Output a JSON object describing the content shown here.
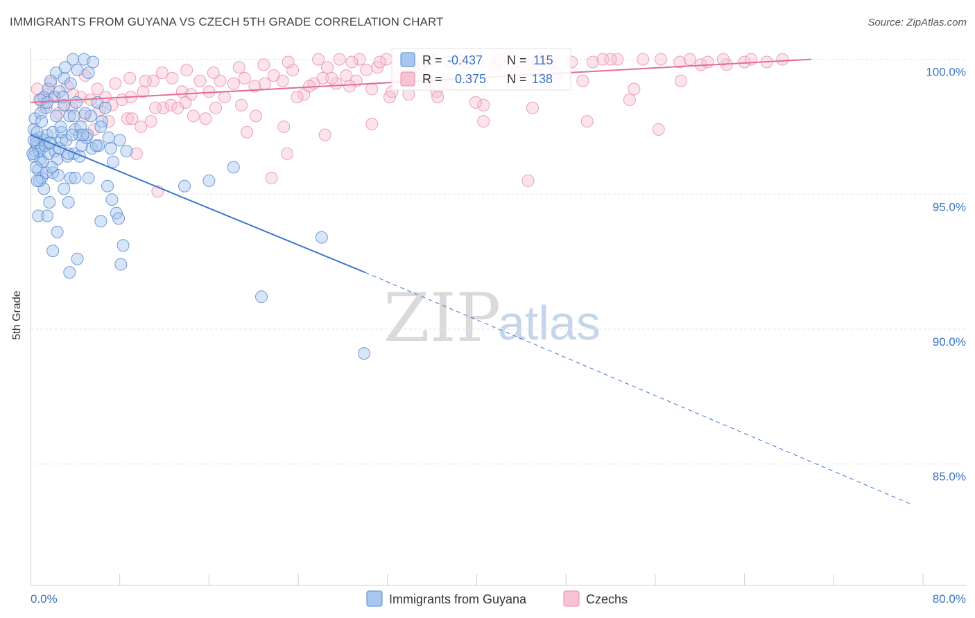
{
  "header": {
    "title": "IMMIGRANTS FROM GUYANA VS CZECH 5TH GRADE CORRELATION CHART",
    "source": "Source: ZipAtlas.com"
  },
  "watermark": {
    "zip": "ZIP",
    "atlas": "atlas"
  },
  "chart_data": {
    "type": "scatter",
    "title": "IMMIGRANTS FROM GUYANA VS CZECH 5TH GRADE CORRELATION CHART",
    "xlabel": "",
    "ylabel": "5th Grade",
    "xlim": [
      0,
      80
    ],
    "ylim": [
      80.5,
      100.4
    ],
    "x_tick_labels": [
      "0.0%",
      "80.0%"
    ],
    "y_ticks": [
      100,
      95,
      90,
      85
    ],
    "y_tick_labels": [
      "100.0%",
      "95.0%",
      "90.0%",
      "85.0%"
    ],
    "grid": true,
    "legend_position": "bottom-center",
    "colors": {
      "blue_fill": "#a9c6ee",
      "blue_stroke": "#4f86cf",
      "blue_line": "#3a74d0",
      "pink_fill": "#f7c3d2",
      "pink_stroke": "#e889a7",
      "pink_line": "#e56b93",
      "grid": "#e6e6e6",
      "axis_text": "#3a74c4"
    },
    "stats": [
      {
        "r_label": "R =",
        "r": "-0.437",
        "n_label": "N =",
        "n": "115"
      },
      {
        "r_label": "R =",
        "r": "0.375",
        "n_label": "N =",
        "n": "138"
      }
    ],
    "series": [
      {
        "name": "Immigrants from Guyana",
        "color": "blue",
        "trend": {
          "x0": 0,
          "y0": 97.2,
          "x1": 30,
          "y1": 92.1,
          "x_dashed_end": 79,
          "y_dashed_end": 83.5
        },
        "points": [
          [
            0.3,
            97.4
          ],
          [
            0.5,
            97.0
          ],
          [
            0.4,
            96.6
          ],
          [
            0.6,
            96.8
          ],
          [
            0.8,
            97.1
          ],
          [
            0.3,
            96.4
          ],
          [
            0.7,
            95.9
          ],
          [
            0.9,
            96.3
          ],
          [
            1.0,
            96.7
          ],
          [
            1.2,
            97.0
          ],
          [
            0.4,
            97.8
          ],
          [
            0.6,
            97.3
          ],
          [
            0.5,
            96.9
          ],
          [
            0.8,
            96.6
          ],
          [
            1.1,
            96.2
          ],
          [
            1.3,
            96.8
          ],
          [
            1.5,
            97.2
          ],
          [
            1.6,
            96.5
          ],
          [
            1.8,
            96.9
          ],
          [
            2.0,
            97.3
          ],
          [
            2.2,
            96.6
          ],
          [
            2.4,
            96.3
          ],
          [
            2.6,
            96.7
          ],
          [
            2.8,
            97.0
          ],
          [
            1.0,
            95.6
          ],
          [
            1.2,
            95.2
          ],
          [
            1.4,
            95.8
          ],
          [
            0.8,
            95.5
          ],
          [
            2.0,
            95.8
          ],
          [
            2.5,
            95.7
          ],
          [
            3.0,
            95.2
          ],
          [
            3.4,
            94.7
          ],
          [
            1.7,
            94.7
          ],
          [
            0.7,
            94.2
          ],
          [
            1.5,
            94.2
          ],
          [
            2.4,
            93.6
          ],
          [
            2.0,
            92.9
          ],
          [
            4.2,
            92.6
          ],
          [
            3.5,
            92.1
          ],
          [
            1.2,
            98.6
          ],
          [
            1.6,
            98.9
          ],
          [
            2.1,
            98.6
          ],
          [
            1.4,
            98.2
          ],
          [
            2.3,
            97.9
          ],
          [
            3.0,
            98.3
          ],
          [
            3.5,
            97.9
          ],
          [
            4.0,
            97.4
          ],
          [
            4.4,
            97.2
          ],
          [
            4.6,
            96.8
          ],
          [
            5.0,
            97.1
          ],
          [
            5.5,
            96.7
          ],
          [
            0.9,
            98.0
          ],
          [
            1.0,
            97.7
          ],
          [
            2.8,
            97.3
          ],
          [
            3.2,
            97.0
          ],
          [
            2.3,
            99.5
          ],
          [
            3.0,
            99.3
          ],
          [
            3.6,
            99.1
          ],
          [
            3.8,
            100.0
          ],
          [
            4.8,
            100.0
          ],
          [
            3.1,
            99.7
          ],
          [
            4.2,
            99.6
          ],
          [
            5.2,
            99.5
          ],
          [
            4.1,
            98.4
          ],
          [
            6.4,
            97.7
          ],
          [
            6.0,
            98.4
          ],
          [
            5.6,
            99.9
          ],
          [
            7.0,
            97.1
          ],
          [
            7.2,
            96.7
          ],
          [
            7.4,
            96.2
          ],
          [
            6.9,
            95.3
          ],
          [
            7.3,
            94.8
          ],
          [
            7.7,
            94.3
          ],
          [
            7.9,
            94.1
          ],
          [
            8.3,
            93.1
          ],
          [
            8.1,
            92.4
          ],
          [
            6.3,
            94.0
          ],
          [
            5.2,
            95.6
          ],
          [
            6.1,
            96.8
          ],
          [
            6.3,
            97.5
          ],
          [
            4.5,
            97.5
          ],
          [
            3.9,
            97.9
          ],
          [
            2.6,
            98.8
          ],
          [
            1.8,
            99.2
          ],
          [
            0.3,
            97.0
          ],
          [
            0.2,
            96.5
          ],
          [
            0.5,
            96.0
          ],
          [
            0.6,
            95.5
          ],
          [
            1.9,
            96.0
          ],
          [
            3.3,
            96.4
          ],
          [
            3.9,
            96.5
          ],
          [
            3.6,
            95.6
          ],
          [
            4.0,
            95.6
          ],
          [
            4.4,
            96.4
          ],
          [
            5.1,
            97.2
          ],
          [
            5.4,
            97.9
          ],
          [
            8.6,
            96.6
          ],
          [
            8.0,
            97.0
          ],
          [
            13.8,
            95.3
          ],
          [
            16.0,
            95.5
          ],
          [
            18.2,
            96.0
          ],
          [
            26.1,
            93.4
          ],
          [
            20.7,
            91.2
          ],
          [
            29.9,
            89.1
          ],
          [
            1.7,
            96.9
          ],
          [
            2.7,
            97.5
          ],
          [
            4.7,
            97.2
          ],
          [
            3.4,
            96.5
          ],
          [
            0.9,
            98.5
          ],
          [
            1.5,
            98.4
          ],
          [
            2.9,
            98.6
          ],
          [
            3.7,
            97.2
          ],
          [
            4.9,
            98.0
          ],
          [
            5.9,
            96.8
          ],
          [
            6.7,
            98.2
          ]
        ]
      },
      {
        "name": "Czechs",
        "color": "pink",
        "trend": {
          "x0": 0,
          "y0": 98.4,
          "x1": 70,
          "y1": 100.0
        },
        "points": [
          [
            0.8,
            98.5
          ],
          [
            1.5,
            98.7
          ],
          [
            2.2,
            98.6
          ],
          [
            3.0,
            98.3
          ],
          [
            4.5,
            98.6
          ],
          [
            5.4,
            98.5
          ],
          [
            6.7,
            98.6
          ],
          [
            8.2,
            98.5
          ],
          [
            9.0,
            98.6
          ],
          [
            10.1,
            98.8
          ],
          [
            11.0,
            99.2
          ],
          [
            12.7,
            99.3
          ],
          [
            13.6,
            98.8
          ],
          [
            14.4,
            98.7
          ],
          [
            15.2,
            99.2
          ],
          [
            16.0,
            98.8
          ],
          [
            17.0,
            99.2
          ],
          [
            18.2,
            99.1
          ],
          [
            19.2,
            99.3
          ],
          [
            20.1,
            99.0
          ],
          [
            21.0,
            99.1
          ],
          [
            21.8,
            99.4
          ],
          [
            22.6,
            99.2
          ],
          [
            23.5,
            99.6
          ],
          [
            24.5,
            98.7
          ],
          [
            25.4,
            99.1
          ],
          [
            26.2,
            99.3
          ],
          [
            27.4,
            99.1
          ],
          [
            28.3,
            99.4
          ],
          [
            29.2,
            99.2
          ],
          [
            30.1,
            99.6
          ],
          [
            31.1,
            99.7
          ],
          [
            32.2,
            98.6
          ],
          [
            33.0,
            99.4
          ],
          [
            34.3,
            99.7
          ],
          [
            35.1,
            99.8
          ],
          [
            36.4,
            98.8
          ],
          [
            37.6,
            99.9
          ],
          [
            38.7,
            99.3
          ],
          [
            40.6,
            98.3
          ],
          [
            41.6,
            99.7
          ],
          [
            43.6,
            99.5
          ],
          [
            44.5,
            99.8
          ],
          [
            45.5,
            99.8
          ],
          [
            47.1,
            99.5
          ],
          [
            48.5,
            99.9
          ],
          [
            50.4,
            99.9
          ],
          [
            52.6,
            100.0
          ],
          [
            54.9,
            100.0
          ],
          [
            58.2,
            99.9
          ],
          [
            60.1,
            99.8
          ],
          [
            62.4,
            99.8
          ],
          [
            64.0,
            99.9
          ],
          [
            66.0,
            99.9
          ],
          [
            67.4,
            100.0
          ],
          [
            1.2,
            98.2
          ],
          [
            2.5,
            98.0
          ],
          [
            3.7,
            98.2
          ],
          [
            4.8,
            97.9
          ],
          [
            5.7,
            97.4
          ],
          [
            7.0,
            97.7
          ],
          [
            8.7,
            97.8
          ],
          [
            9.9,
            97.5
          ],
          [
            10.8,
            97.7
          ],
          [
            11.9,
            98.2
          ],
          [
            12.6,
            98.3
          ],
          [
            13.2,
            98.2
          ],
          [
            14.6,
            97.9
          ],
          [
            15.7,
            97.8
          ],
          [
            17.4,
            98.6
          ],
          [
            18.9,
            98.3
          ],
          [
            20.2,
            97.9
          ],
          [
            22.7,
            97.5
          ],
          [
            26.4,
            97.2
          ],
          [
            30.6,
            97.6
          ],
          [
            33.9,
            98.7
          ],
          [
            36.5,
            98.6
          ],
          [
            40.6,
            97.7
          ],
          [
            45.0,
            98.2
          ],
          [
            49.9,
            97.7
          ],
          [
            53.7,
            98.5
          ],
          [
            56.3,
            97.4
          ],
          [
            0.6,
            98.9
          ],
          [
            1.8,
            99.1
          ],
          [
            3.3,
            99.0
          ],
          [
            4.9,
            99.4
          ],
          [
            6.0,
            98.9
          ],
          [
            7.6,
            99.1
          ],
          [
            8.9,
            99.3
          ],
          [
            10.3,
            99.2
          ],
          [
            11.8,
            99.5
          ],
          [
            14.0,
            99.6
          ],
          [
            16.4,
            99.5
          ],
          [
            18.7,
            99.7
          ],
          [
            20.9,
            99.8
          ],
          [
            23.1,
            99.9
          ],
          [
            25.8,
            100.0
          ],
          [
            27.7,
            100.0
          ],
          [
            29.5,
            100.0
          ],
          [
            31.9,
            100.0
          ],
          [
            34.0,
            99.5
          ],
          [
            36.0,
            100.0
          ],
          [
            38.3,
            100.0
          ],
          [
            42.0,
            100.0
          ],
          [
            46.6,
            99.9
          ],
          [
            51.3,
            100.0
          ],
          [
            56.5,
            100.0
          ],
          [
            60.7,
            99.9
          ],
          [
            9.5,
            96.5
          ],
          [
            11.4,
            95.1
          ],
          [
            21.6,
            95.6
          ],
          [
            23.0,
            96.5
          ],
          [
            25.0,
            99.0
          ],
          [
            27.0,
            99.3
          ],
          [
            28.6,
            99.0
          ],
          [
            30.6,
            98.9
          ],
          [
            32.4,
            98.8
          ],
          [
            35.6,
            99.2
          ],
          [
            37.4,
            99.1
          ],
          [
            39.9,
            98.4
          ],
          [
            44.6,
            95.5
          ],
          [
            49.5,
            99.2
          ],
          [
            54.1,
            98.9
          ],
          [
            58.3,
            99.2
          ],
          [
            3.8,
            98.7
          ],
          [
            6.2,
            98.1
          ],
          [
            7.3,
            98.3
          ],
          [
            9.1,
            97.8
          ],
          [
            11.2,
            98.2
          ],
          [
            13.9,
            98.4
          ],
          [
            16.6,
            98.2
          ],
          [
            19.4,
            97.3
          ],
          [
            23.9,
            98.6
          ],
          [
            26.6,
            99.7
          ],
          [
            28.8,
            99.9
          ],
          [
            31.3,
            99.9
          ],
          [
            39.1,
            99.9
          ],
          [
            45.6,
            100.0
          ],
          [
            52.0,
            100.0
          ],
          [
            59.1,
            100.0
          ],
          [
            62.1,
            100.0
          ],
          [
            64.6,
            100.0
          ]
        ]
      }
    ]
  }
}
